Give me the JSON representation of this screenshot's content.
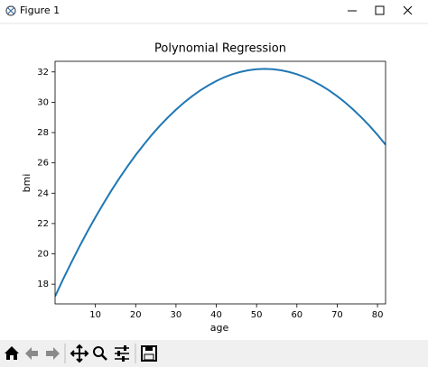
{
  "window": {
    "title": "Figure 1"
  },
  "chart_data": {
    "type": "line",
    "title": "Polynomial Regression",
    "x_label": "age",
    "y_label": "bmi",
    "x": [
      0,
      2,
      4,
      6,
      8,
      10,
      12,
      14,
      16,
      18,
      20,
      22,
      24,
      26,
      28,
      30,
      32,
      34,
      36,
      38,
      40,
      42,
      44,
      46,
      48,
      50,
      52,
      54,
      56,
      58,
      60,
      62,
      64,
      66,
      68,
      70,
      72,
      74,
      76,
      78,
      80,
      82
    ],
    "values": [
      17.19,
      18.33,
      19.41,
      20.46,
      21.46,
      22.41,
      23.32,
      24.19,
      25.01,
      25.78,
      26.52,
      27.2,
      27.85,
      28.45,
      29.0,
      29.51,
      29.98,
      30.4,
      30.78,
      31.11,
      31.4,
      31.65,
      31.85,
      32.0,
      32.11,
      32.18,
      32.2,
      32.18,
      32.11,
      32.0,
      31.85,
      31.65,
      31.4,
      31.11,
      30.78,
      30.4,
      29.98,
      29.51,
      29.0,
      28.45,
      27.85,
      27.2
    ],
    "color": "#1f77b4",
    "xlim": [
      0,
      82
    ],
    "xticks": [
      10,
      20,
      30,
      40,
      50,
      60,
      70,
      80
    ],
    "ylim": [
      16.7,
      32.7
    ],
    "yticks": [
      18,
      20,
      22,
      24,
      26,
      28,
      30,
      32
    ],
    "grid": false
  }
}
